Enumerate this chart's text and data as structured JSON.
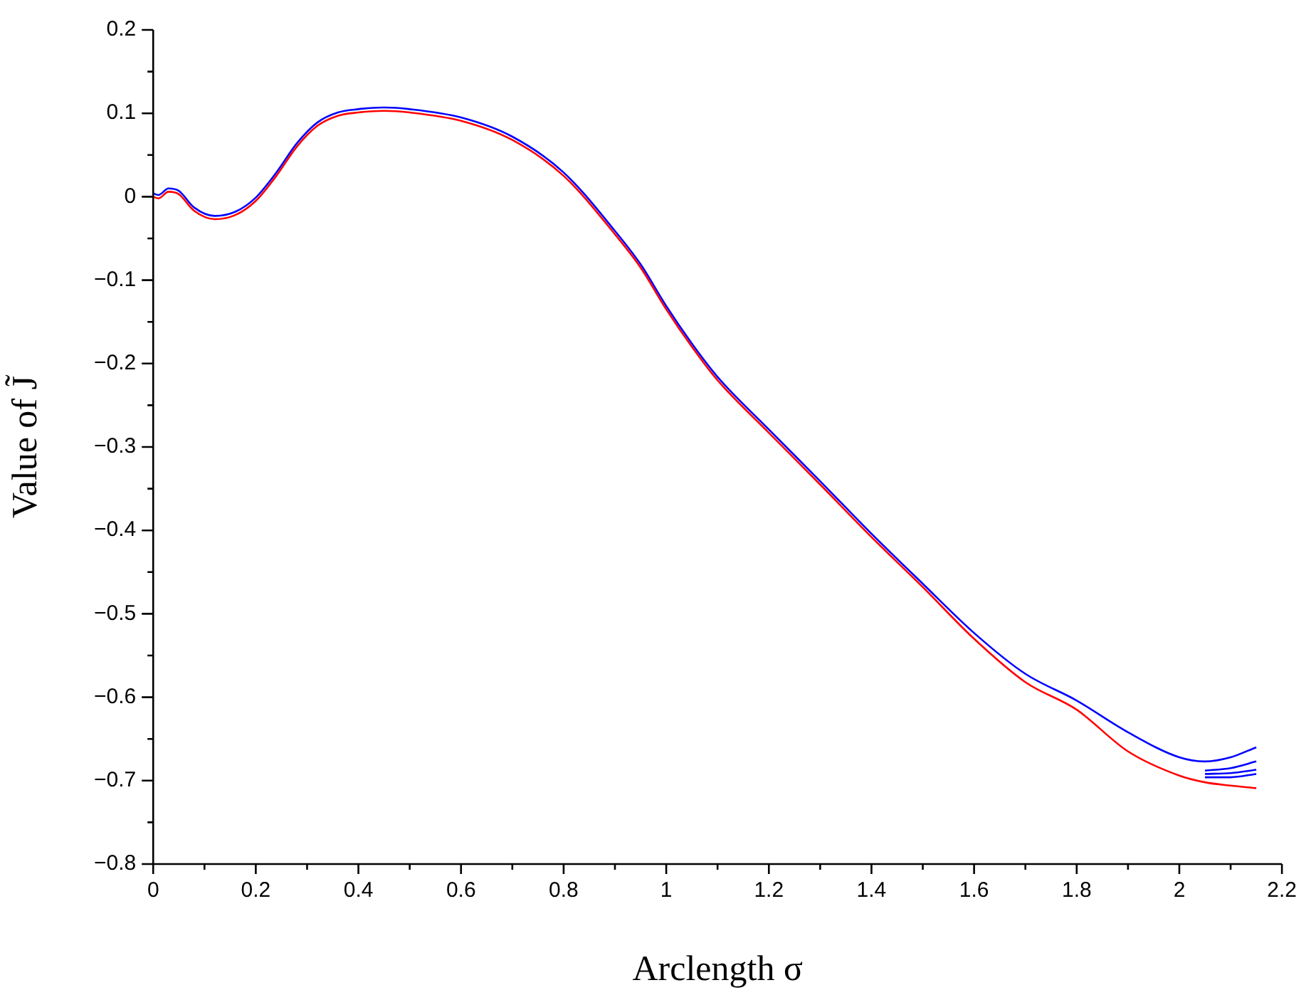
{
  "chart_data": {
    "type": "line",
    "xlabel": "Arclength σ",
    "ylabel": "Value of J̃",
    "x": [
      0,
      0.01,
      0.03,
      0.05,
      0.08,
      0.12,
      0.16,
      0.2,
      0.24,
      0.28,
      0.32,
      0.36,
      0.4,
      0.45,
      0.5,
      0.6,
      0.7,
      0.8,
      0.9,
      0.95,
      1.0,
      1.05,
      1.1,
      1.2,
      1.3,
      1.4,
      1.5,
      1.6,
      1.7,
      1.8,
      1.9,
      2.0,
      2.05,
      2.1,
      2.15
    ],
    "series": [
      {
        "color": "#0000ff",
        "values": [
          0.004,
          0.002,
          0.01,
          0.007,
          -0.013,
          -0.023,
          -0.018,
          -0.001,
          0.029,
          0.064,
          0.089,
          0.101,
          0.105,
          0.107,
          0.105,
          0.095,
          0.072,
          0.029,
          -0.041,
          -0.081,
          -0.131,
          -0.176,
          -0.216,
          -0.279,
          -0.341,
          -0.404,
          -0.464,
          -0.523,
          -0.572,
          -0.604,
          -0.642,
          -0.672,
          -0.677,
          -0.672,
          -0.66
        ]
      },
      {
        "color": "#0000ff",
        "x": [
          2.05,
          2.1,
          2.15
        ],
        "values": [
          -0.688,
          -0.685,
          -0.677
        ]
      },
      {
        "color": "#0000ff",
        "x": [
          2.05,
          2.1,
          2.15
        ],
        "values": [
          -0.692,
          -0.691,
          -0.687
        ]
      },
      {
        "color": "#0000ff",
        "x": [
          2.05,
          2.1,
          2.15
        ],
        "values": [
          -0.696,
          -0.696,
          -0.692
        ]
      },
      {
        "color": "#ff0000",
        "values": [
          0,
          -0.002,
          0.006,
          0.003,
          -0.017,
          -0.027,
          -0.022,
          -0.005,
          0.025,
          0.06,
          0.085,
          0.097,
          0.101,
          0.103,
          0.101,
          0.091,
          0.068,
          0.025,
          -0.045,
          -0.085,
          -0.135,
          -0.18,
          -0.22,
          -0.283,
          -0.345,
          -0.408,
          -0.468,
          -0.53,
          -0.582,
          -0.615,
          -0.665,
          -0.694,
          -0.702,
          -0.706,
          -0.709
        ]
      }
    ],
    "xlim": [
      0,
      2.2
    ],
    "xticks": [
      0,
      {
        "value": 0.1,
        "label": null
      },
      0.2,
      {
        "value": 0.3,
        "label": null
      },
      0.4,
      {
        "value": 0.5,
        "label": null
      },
      0.6,
      {
        "value": 0.7,
        "label": null
      },
      0.8,
      {
        "value": 0.9,
        "label": null
      },
      1,
      {
        "value": 1.1,
        "label": null
      },
      1.2,
      {
        "value": 1.3,
        "label": null
      },
      1.4,
      {
        "value": 1.5,
        "label": null
      },
      1.6,
      {
        "value": 1.7,
        "label": null
      },
      1.8,
      {
        "value": 1.9,
        "label": null
      },
      2,
      {
        "value": 2.1,
        "label": null
      },
      2.2
    ],
    "ylim": [
      -0.8,
      0.2
    ],
    "yticks": [
      {
        "value": -0.8,
        "label": "−0.8"
      },
      {
        "value": -0.75,
        "label": null
      },
      {
        "value": -0.7,
        "label": "−0.7"
      },
      {
        "value": -0.65,
        "label": null
      },
      {
        "value": -0.6,
        "label": "−0.6"
      },
      {
        "value": -0.55,
        "label": null
      },
      {
        "value": -0.5,
        "label": "−0.5"
      },
      {
        "value": -0.45,
        "label": null
      },
      {
        "value": -0.4,
        "label": "−0.4"
      },
      {
        "value": -0.35,
        "label": null
      },
      {
        "value": -0.3,
        "label": "−0.3"
      },
      {
        "value": -0.25,
        "label": null
      },
      {
        "value": -0.2,
        "label": "−0.2"
      },
      {
        "value": -0.15,
        "label": null
      },
      {
        "value": -0.1,
        "label": "−0.1"
      },
      {
        "value": -0.05,
        "label": null
      },
      0,
      {
        "value": 0.05,
        "label": null
      },
      0.1,
      {
        "value": 0.15,
        "label": null
      },
      0.2
    ],
    "grid": false,
    "legend": false,
    "marker": "none",
    "line_style": "solid"
  }
}
